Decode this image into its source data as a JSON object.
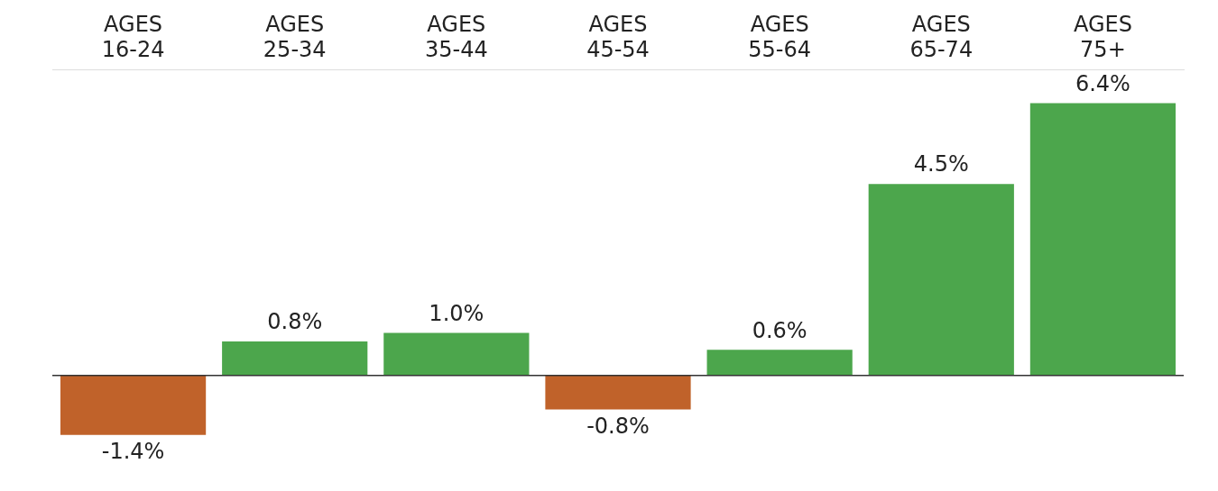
{
  "chart_data": {
    "type": "bar",
    "categories": [
      "AGES\n16-24",
      "AGES\n25-34",
      "AGES\n35-44",
      "AGES\n45-54",
      "AGES\n55-64",
      "AGES\n65-74",
      "AGES\n75+"
    ],
    "values": [
      -1.4,
      0.8,
      1.0,
      -0.8,
      0.6,
      4.5,
      6.4
    ],
    "colors": [
      "#c0622a",
      "#4ca64c",
      "#4ca64c",
      "#c0622a",
      "#4ca64c",
      "#4ca64c",
      "#4ca64c"
    ],
    "value_labels": [
      "-1.4%",
      "0.8%",
      "1.0%",
      "-0.8%",
      "0.6%",
      "4.5%",
      "6.4%"
    ],
    "grid": false,
    "legend": false
  }
}
